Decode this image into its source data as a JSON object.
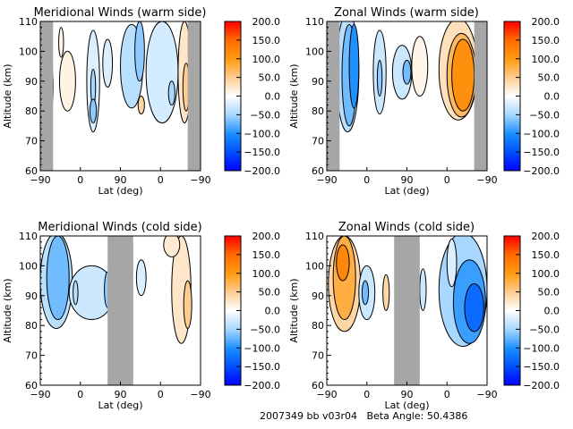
{
  "footer": "2007349 bb v03r04   Beta Angle: 50.4386",
  "colorbar": {
    "min": -200,
    "max": 200,
    "tick_labels": [
      "200.0",
      "150.0",
      "100.0",
      "50.0",
      "0.0",
      "−50.0",
      "−100.0",
      "−150.0",
      "−200.0"
    ],
    "colors": {
      "max": "#ff0000",
      "p150": "#ff6a00",
      "p100": "#ff9a10",
      "p50": "#ffcc90",
      "zero": "#ffffff",
      "m50": "#a8d8ff",
      "m100": "#1e90ff",
      "m150": "#0050ff",
      "min": "#0000ff"
    }
  },
  "chart_data": [
    {
      "type": "heatmap",
      "title": "Meridional Winds (warm side)",
      "xlabel": "Lat (deg)",
      "ylabel": "Altitude (km)",
      "x_tick_labels": [
        "−90",
        "0",
        "90",
        "0",
        "−90"
      ],
      "y_tick_labels": [
        "60",
        "70",
        "80",
        "90",
        "100",
        "110"
      ],
      "ylim": [
        60,
        110
      ],
      "no_data_lat_bands": [
        "−90 to −70 (ascending)",
        "−90 to −70 (descending)"
      ],
      "features": [
        {
          "lat_approx": "−85",
          "alt": "76-100",
          "value_approx": 40
        },
        {
          "lat_approx": "35",
          "alt": "73-107",
          "value_approx": -30
        },
        {
          "lat_approx": "90 to 30 desc",
          "alt": "83-110",
          "value_approx": -50
        },
        {
          "lat_approx": "−70 desc",
          "alt": "75-110",
          "value_approx": 30
        }
      ]
    },
    {
      "type": "heatmap",
      "title": "Zonal Winds (warm side)",
      "xlabel": "Lat (deg)",
      "ylabel": "Altitude (km)",
      "x_tick_labels": [
        "−90",
        "0",
        "90",
        "0",
        "−90"
      ],
      "y_tick_labels": [
        "60",
        "70",
        "80",
        "90",
        "100",
        "110"
      ],
      "ylim": [
        60,
        110
      ],
      "features": [
        {
          "lat_approx": "−60",
          "alt": "73-110",
          "value_approx": -80
        },
        {
          "lat_approx": "30",
          "alt": "78-108",
          "value_approx": -40
        },
        {
          "lat_approx": "75",
          "alt": "83-102",
          "value_approx": -60
        },
        {
          "lat_approx": "−40 desc",
          "alt": "78-110",
          "value_approx": 110
        }
      ]
    },
    {
      "type": "heatmap",
      "title": "Meridional Winds (cold side)",
      "xlabel": "Lat (deg)",
      "ylabel": "Altitude (km)",
      "x_tick_labels": [
        "−90",
        "0",
        "90",
        "0",
        "−90"
      ],
      "y_tick_labels": [
        "60",
        "70",
        "80",
        "90",
        "100",
        "110"
      ],
      "ylim": [
        60,
        110
      ],
      "no_data_lat_bands": [
        "60 asc to 60 desc"
      ],
      "features": [
        {
          "lat_approx": "−60",
          "alt": "76-110",
          "value_approx": -60
        },
        {
          "lat_approx": "20",
          "alt": "82-100",
          "value_approx": -30
        },
        {
          "lat_approx": "−60 desc",
          "alt": "75-110",
          "value_approx": 40
        }
      ]
    },
    {
      "type": "heatmap",
      "title": "Zonal Winds (cold side)",
      "xlabel": "Lat (deg)",
      "ylabel": "Altitude (km)",
      "x_tick_labels": [
        "−90",
        "0",
        "90",
        "0",
        "−90"
      ],
      "y_tick_labels": [
        "60",
        "70",
        "80",
        "90",
        "100",
        "110"
      ],
      "ylim": [
        60,
        110
      ],
      "no_data_lat_bands": [
        "60 asc to 60 desc"
      ],
      "features": [
        {
          "lat_approx": "−60",
          "alt": "77-110",
          "value_approx": 110
        },
        {
          "lat_approx": "0",
          "alt": "83-100",
          "value_approx": -60
        },
        {
          "lat_approx": "−60 desc",
          "alt": "72-110",
          "value_approx": -120
        }
      ]
    }
  ]
}
